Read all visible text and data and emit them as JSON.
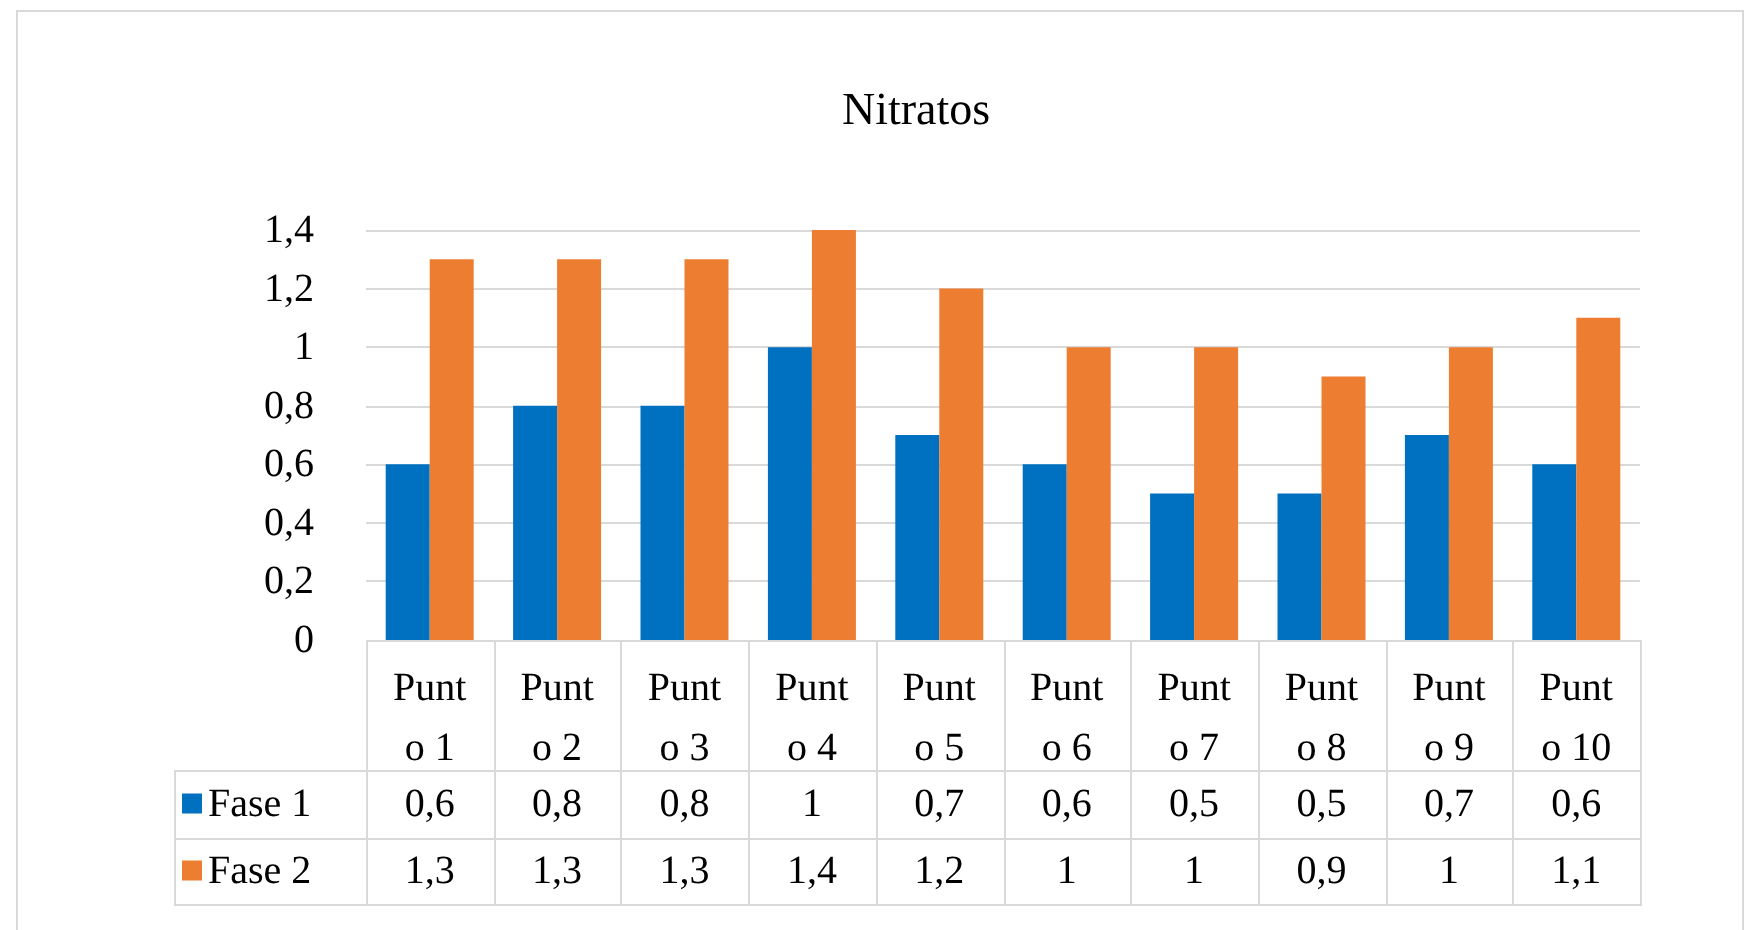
{
  "chart_data": {
    "type": "bar",
    "title": "Nitratos",
    "categories": [
      "Punto 1",
      "Punto 2",
      "Punto 3",
      "Punto 4",
      "Punto 5",
      "Punto 6",
      "Punto 7",
      "Punto 8",
      "Punto 9",
      "Punto 10"
    ],
    "series": [
      {
        "name": "Fase 1",
        "color": "#0070c0",
        "values": [
          0.6,
          0.8,
          0.8,
          1,
          0.7,
          0.6,
          0.5,
          0.5,
          0.7,
          0.6
        ],
        "value_labels": [
          "0,6",
          "0,8",
          "0,8",
          "1",
          "0,7",
          "0,6",
          "0,5",
          "0,5",
          "0,7",
          "0,6"
        ]
      },
      {
        "name": "Fase 2",
        "color": "#ed7d31",
        "values": [
          1.3,
          1.3,
          1.3,
          1.4,
          1.2,
          1,
          1,
          0.9,
          1,
          1.1
        ],
        "value_labels": [
          "1,3",
          "1,3",
          "1,3",
          "1,4",
          "1,2",
          "1",
          "1",
          "0,9",
          "1",
          "1,1"
        ]
      }
    ],
    "ylim": [
      0,
      1.4
    ],
    "yticks": [
      0,
      {
        "value": 0.2,
        "label": "0,2"
      },
      {
        "value": 0.4,
        "label": "0,4"
      },
      {
        "value": 0.6,
        "label": "0,6"
      },
      {
        "value": 0.8,
        "label": "0,8"
      },
      1,
      {
        "value": 1.2,
        "label": "1,2"
      },
      {
        "value": 1.4,
        "label": "1,4"
      }
    ],
    "grid": "y",
    "legend": "bottom"
  }
}
